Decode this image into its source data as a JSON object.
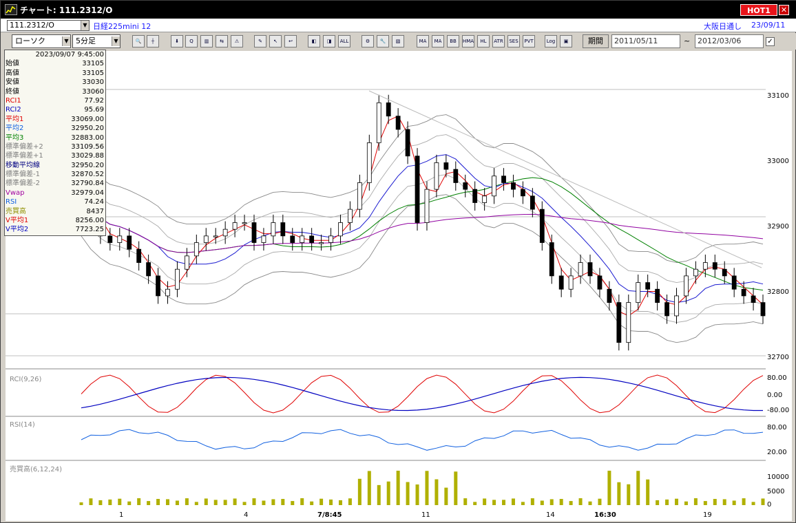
{
  "window": {
    "title": "チャート: 111.2312/O",
    "hot_label": "HOT1",
    "close_label": "✕"
  },
  "header": {
    "code": "111.2312/O",
    "instrument": "日経225mini 12",
    "market": "大阪日通し",
    "market_date": "23/09/11"
  },
  "toolbar": {
    "chart_type": "ローソク",
    "interval": "5分足",
    "period_label": "期間",
    "date_from": "2011/05/11",
    "date_sep": "~",
    "date_to": "2012/03/06",
    "buttons": [
      {
        "name": "zoom-icon",
        "label": "🔍"
      },
      {
        "name": "crosshair-icon",
        "label": "┼"
      },
      {
        "name": "download-icon",
        "label": "⬇"
      },
      {
        "name": "search-chart-icon",
        "label": "Q"
      },
      {
        "name": "indicator-icon",
        "label": "▥"
      },
      {
        "name": "arrows-icon",
        "label": "⇆"
      },
      {
        "name": "warning-icon",
        "label": "⚠"
      },
      {
        "name": "pen-icon",
        "label": "✎"
      },
      {
        "name": "cursor-icon",
        "label": "↖"
      },
      {
        "name": "undo-icon",
        "label": "↩"
      },
      {
        "name": "candle-left-icon",
        "label": "◧"
      },
      {
        "name": "candle-right-icon",
        "label": "◨"
      },
      {
        "name": "all-icon",
        "label": "ALL"
      },
      {
        "name": "settings-icon",
        "label": "⚙"
      },
      {
        "name": "wrench-icon",
        "label": "🔧"
      },
      {
        "name": "color-icon",
        "label": "▧"
      },
      {
        "name": "ma-list-icon",
        "label": "MA"
      },
      {
        "name": "ma-icon",
        "label": "MA"
      },
      {
        "name": "bb-icon",
        "label": "BB"
      },
      {
        "name": "hma-icon",
        "label": "HMA"
      },
      {
        "name": "hl-icon",
        "label": "HL"
      },
      {
        "name": "atr-icon",
        "label": "ATR"
      },
      {
        "name": "ses-icon",
        "label": "SES"
      },
      {
        "name": "pvt-icon",
        "label": "PVT"
      },
      {
        "name": "log-icon",
        "label": "Log"
      },
      {
        "name": "export-icon",
        "label": "▣"
      }
    ]
  },
  "info_panel": {
    "datetime": "2023/09/07 9:45:00",
    "rows": [
      {
        "label": "始値",
        "value": "33105",
        "color": "#000000"
      },
      {
        "label": "高値",
        "value": "33105",
        "color": "#000000"
      },
      {
        "label": "安値",
        "value": "33030",
        "color": "#000000"
      },
      {
        "label": "終値",
        "value": "33060",
        "color": "#000000"
      },
      {
        "label": "RCI1",
        "value": "77.92",
        "color": "#e00000"
      },
      {
        "label": "RCI2",
        "value": "95.69",
        "color": "#0000c0"
      },
      {
        "label": "平均1",
        "value": "33069.00",
        "color": "#e00000"
      },
      {
        "label": "平均2",
        "value": "32950.20",
        "color": "#1060e0"
      },
      {
        "label": "平均3",
        "value": "32883.00",
        "color": "#008000"
      },
      {
        "label": "標準偏差+2",
        "value": "33109.56",
        "color": "#808080"
      },
      {
        "label": "標準偏差+1",
        "value": "33029.88",
        "color": "#808080"
      },
      {
        "label": "移動平均線",
        "value": "32950.20",
        "color": "#000080"
      },
      {
        "label": "標準偏差-1",
        "value": "32870.52",
        "color": "#808080"
      },
      {
        "label": "標準偏差-2",
        "value": "32790.84",
        "color": "#808080"
      },
      {
        "label": "Vwap",
        "value": "32979.04",
        "color": "#a000a0"
      },
      {
        "label": "RSI",
        "value": "74.24",
        "color": "#1060e0"
      },
      {
        "label": "売買高",
        "value": "8437",
        "color": "#909000"
      },
      {
        "label": "V平均1",
        "value": "8256.00",
        "color": "#e00000"
      },
      {
        "label": "V平均2",
        "value": "7723.25",
        "color": "#0000c0"
      }
    ]
  },
  "panels": {
    "rci_label": "RCI(9,26)",
    "rsi_label": "RSI(14)",
    "volume_label": "売買高(6,12,24)"
  },
  "axes": {
    "price_ticks": [
      "33100",
      "33000",
      "32900",
      "32800",
      "32700"
    ],
    "rci_ticks": [
      "80.00",
      "0.00",
      "-80.00"
    ],
    "rsi_ticks": [
      "80.00",
      "20.00"
    ],
    "volume_ticks": [
      "10000",
      "5000",
      "0"
    ],
    "x_ticks": [
      "1",
      "4",
      "7/8:45",
      "11",
      "14",
      "16:30",
      "19"
    ]
  },
  "chart_data": {
    "type": "line",
    "price_series": [
      32940,
      32900,
      32880,
      32870,
      32880,
      32860,
      32840,
      32820,
      32790,
      32800,
      32830,
      32850,
      32870,
      32880,
      32880,
      32890,
      32900,
      32900,
      32870,
      32880,
      32900,
      32880,
      32870,
      32880,
      32870,
      32870,
      32880,
      32900,
      32920,
      32960,
      33020,
      33080,
      33060,
      33040,
      33000,
      32900,
      32950,
      32990,
      32980,
      32960,
      32950,
      32930,
      32940,
      32970,
      32960,
      32950,
      32940,
      32920,
      32870,
      32820,
      32800,
      32820,
      32840,
      32820,
      32800,
      32780,
      32720,
      32780,
      32810,
      32800,
      32780,
      32760,
      32790,
      32820,
      32830,
      32840,
      32830,
      32820,
      32800,
      32790,
      32780,
      32760
    ]
  }
}
